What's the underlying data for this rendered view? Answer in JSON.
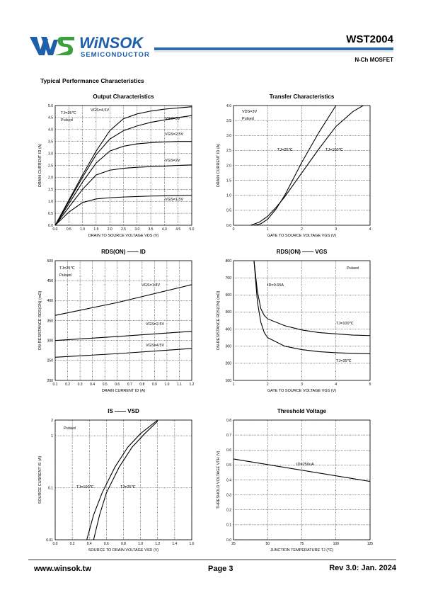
{
  "header": {
    "logo": "WiNSOK",
    "logo_sub": "SEMICONDUCTOR",
    "part": "WST2004",
    "subtitle": "N-Ch MOSFET",
    "section": "Typical Performance Characteristics"
  },
  "footer": {
    "website": "www.winsok.tw",
    "page": "Page 3",
    "revision": "Rev 3.0: Jan. 2024"
  },
  "chart_data": [
    {
      "type": "line",
      "title": "Output Characteristics",
      "xlabel": "DRAIN TO SOURCE VOLTAGE VDS (V)",
      "ylabel": "DRAIN CURRENT ID (A)",
      "grid": true,
      "xlim": [
        0,
        5
      ],
      "ylim": [
        0,
        5
      ],
      "xticks": [
        {
          "value": 0,
          "label": "0.0"
        },
        0.5,
        {
          "value": 1,
          "label": "1.0"
        },
        1.5,
        {
          "value": 2,
          "label": "2.0"
        },
        2.5,
        {
          "value": 3,
          "label": "3.0"
        },
        3.5,
        {
          "value": 4,
          "label": "4.0"
        },
        4.5,
        {
          "value": 5,
          "label": "5.0"
        }
      ],
      "yticks": [
        {
          "value": 0,
          "label": "0.0"
        },
        0.5,
        {
          "value": 1,
          "label": "1.0"
        },
        1.5,
        {
          "value": 2,
          "label": "2.0"
        },
        2.5,
        {
          "value": 3,
          "label": "3.0"
        },
        3.5,
        {
          "value": 4,
          "label": "4.0"
        },
        4.5,
        {
          "value": 5,
          "label": "5.0"
        }
      ],
      "annotations": [
        "TJ=25℃",
        "Pulsed"
      ],
      "series": [
        {
          "name": "VGS=4.5V",
          "color": "#000000",
          "x": [
            0,
            0.5,
            1,
            1.5,
            2,
            2.5,
            3,
            3.5,
            4,
            4.5,
            5
          ],
          "values": [
            0,
            1.05,
            2.1,
            3.1,
            3.95,
            4.45,
            4.65,
            4.77,
            4.85,
            4.9,
            4.95
          ]
        },
        {
          "name": "VGS=3V",
          "color": "#000000",
          "x": [
            0,
            0.5,
            1,
            1.5,
            2,
            2.5,
            3,
            3.5,
            4,
            4.5,
            5
          ],
          "values": [
            0,
            1.0,
            2.0,
            2.95,
            3.6,
            3.95,
            4.15,
            4.3,
            4.4,
            4.5,
            4.58
          ]
        },
        {
          "name": "VGS=2.5V",
          "color": "#000000",
          "x": [
            0,
            0.5,
            1,
            1.5,
            2,
            2.5,
            3,
            3.5,
            4,
            4.5,
            5
          ],
          "values": [
            0,
            0.9,
            1.8,
            2.6,
            3.1,
            3.3,
            3.4,
            3.45,
            3.48,
            3.5,
            3.5
          ]
        },
        {
          "name": "VGS=2V",
          "color": "#000000",
          "x": [
            0,
            0.5,
            1,
            1.5,
            2,
            2.5,
            3,
            3.5,
            4,
            4.5,
            5
          ],
          "values": [
            0,
            0.75,
            1.5,
            2.1,
            2.3,
            2.38,
            2.42,
            2.45,
            2.47,
            2.5,
            2.52
          ]
        },
        {
          "name": "VGS=1.5V",
          "color": "#000000",
          "x": [
            0,
            0.5,
            1,
            1.5,
            2,
            2.5,
            3,
            3.5,
            4,
            4.5,
            5
          ],
          "values": [
            0,
            0.55,
            0.95,
            1.1,
            1.15,
            1.18,
            1.2,
            1.22,
            1.23,
            1.24,
            1.25
          ]
        }
      ]
    },
    {
      "type": "line",
      "title": "Transfer Characteristics",
      "xlabel": "GATE TO SOURCE VOLTAGE VGS (V)",
      "ylabel": "DRAIN CURRENT ID (A)",
      "grid": true,
      "xlim": [
        0,
        4
      ],
      "ylim": [
        0,
        4
      ],
      "xticks": [
        0,
        1,
        2,
        3,
        4
      ],
      "yticks": [
        {
          "value": 0,
          "label": "0.0"
        },
        0.5,
        {
          "value": 1,
          "label": "1.0"
        },
        1.5,
        {
          "value": 2,
          "label": "2.0"
        },
        2.5,
        {
          "value": 3,
          "label": "3.0"
        },
        3.5,
        {
          "value": 4,
          "label": "4.0"
        }
      ],
      "annotations": [
        "VDS=3V",
        "Pulsed"
      ],
      "series": [
        {
          "name": "TJ=25℃",
          "color": "#000000",
          "x": [
            0.6,
            0.8,
            1,
            1.25,
            1.5,
            2,
            2.5,
            3
          ],
          "values": [
            0,
            0.05,
            0.2,
            0.55,
            1.0,
            2.1,
            3.1,
            4.0
          ]
        },
        {
          "name": "TJ=100℃",
          "color": "#000000",
          "x": [
            0.5,
            0.75,
            1,
            1.25,
            1.5,
            2,
            2.5,
            3,
            3.5,
            3.8
          ],
          "values": [
            0,
            0.1,
            0.3,
            0.6,
            0.95,
            1.75,
            2.55,
            3.3,
            3.8,
            4.0
          ]
        }
      ]
    },
    {
      "type": "line",
      "title": "RDS(ON) —— ID",
      "xlabel": "DRAIN CURRENT ID (A)",
      "ylabel": "ON-RESISTANCE RDS(ON) (mΩ)",
      "grid": true,
      "xlim": [
        0.1,
        1.2
      ],
      "ylim": [
        200,
        500
      ],
      "xticks": [
        0.1,
        0.2,
        0.3,
        0.4,
        0.5,
        0.6,
        0.7,
        0.8,
        0.9,
        {
          "value": 1,
          "label": "1.0"
        },
        1.1,
        1.2
      ],
      "yticks": [
        200,
        250,
        300,
        350,
        400,
        450,
        500
      ],
      "annotations": [
        "TJ=25℃",
        "Pulsed"
      ],
      "series": [
        {
          "name": "VGS=1.8V",
          "color": "#000000",
          "x": [
            0.1,
            0.6,
            1.2
          ],
          "values": [
            363,
            395,
            440
          ]
        },
        {
          "name": "VGS=2.5V",
          "color": "#000000",
          "x": [
            0.1,
            0.6,
            1.2
          ],
          "values": [
            300,
            310,
            323
          ]
        },
        {
          "name": "VGS=4.5V",
          "color": "#000000",
          "x": [
            0.1,
            0.6,
            1.2
          ],
          "values": [
            258,
            267,
            280
          ]
        }
      ]
    },
    {
      "type": "line",
      "title": "RDS(ON) —— VGS",
      "xlabel": "GATE TO SOURCE VOLTAGE VGS (V)",
      "ylabel": "ON-RESISTANCE RDS(ON) (mΩ)",
      "grid": true,
      "xlim": [
        1,
        5
      ],
      "ylim": [
        100,
        800
      ],
      "xticks": [
        1,
        2,
        3,
        4,
        5
      ],
      "yticks": [
        100,
        200,
        300,
        400,
        500,
        600,
        700,
        800
      ],
      "annotations": [
        "ID=0.65A",
        "Pulsed"
      ],
      "series": [
        {
          "name": "TJ=100℃",
          "color": "#000000",
          "x": [
            1.6,
            1.7,
            1.8,
            1.9,
            2,
            2.5,
            3,
            3.5,
            4,
            4.5,
            5
          ],
          "values": [
            800,
            620,
            520,
            480,
            460,
            420,
            395,
            380,
            372,
            365,
            362
          ]
        },
        {
          "name": "TJ=25℃",
          "color": "#000000",
          "x": [
            1.6,
            1.7,
            1.8,
            1.9,
            2,
            2.5,
            3,
            3.5,
            4,
            4.5,
            5
          ],
          "values": [
            800,
            560,
            440,
            380,
            350,
            300,
            280,
            268,
            262,
            258,
            256
          ]
        }
      ]
    },
    {
      "type": "line",
      "title": "IS —— VSD",
      "xlabel": "SOURCE TO DRAIN VOLTAGE VSD (V)",
      "ylabel": "SOURCE CURRENT IS (A)",
      "grid": true,
      "log_y": true,
      "xlim": [
        0,
        1.6
      ],
      "ylim": [
        0.01,
        2
      ],
      "xticks": [
        {
          "value": 0,
          "label": "0.0"
        },
        0.2,
        0.4,
        0.6,
        0.8,
        {
          "value": 1,
          "label": "1.0"
        },
        1.2,
        1.4,
        1.6
      ],
      "yticks": [
        0.01,
        0.1,
        1,
        2
      ],
      "annotations": [
        "Pulsed"
      ],
      "series": [
        {
          "name": "TJ=100℃",
          "color": "#000000",
          "x": [
            0.37,
            0.45,
            0.55,
            0.7,
            0.85,
            1.0,
            1.2
          ],
          "values": [
            0.01,
            0.03,
            0.08,
            0.25,
            0.6,
            1.1,
            2
          ]
        },
        {
          "name": "TJ=25℃",
          "color": "#000000",
          "x": [
            0.45,
            0.52,
            0.6,
            0.75,
            0.9,
            1.05,
            1.2
          ],
          "values": [
            0.01,
            0.03,
            0.08,
            0.25,
            0.6,
            1.1,
            1.9
          ]
        }
      ]
    },
    {
      "type": "line",
      "title": "Threshold Voltage",
      "xlabel": "JUNCTION TEMPERATURE TJ (℃)",
      "ylabel": "THRESHOLD VOLTAGE VTH (V)",
      "grid": true,
      "xlim": [
        25,
        125
      ],
      "ylim": [
        0,
        0.8
      ],
      "xticks": [
        25,
        50,
        75,
        100,
        125
      ],
      "yticks": [
        {
          "value": 0,
          "label": "0.0"
        },
        0.1,
        0.2,
        0.3,
        0.4,
        0.5,
        0.6,
        0.7,
        0.8
      ],
      "annotations": [
        "ID=250uA"
      ],
      "series": [
        {
          "name": "",
          "color": "#000000",
          "x": [
            25,
            125
          ],
          "values": [
            0.54,
            0.39
          ]
        }
      ]
    }
  ]
}
